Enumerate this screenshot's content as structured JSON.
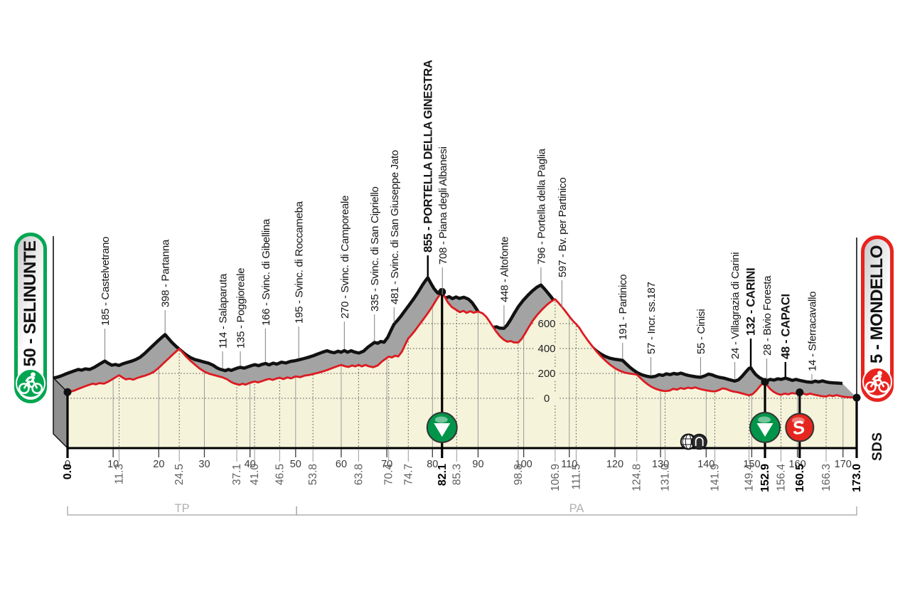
{
  "stage": {
    "start_label": "50 - SELINUNTE",
    "finish_label": "5 - MONDELLO",
    "start_color": "#00a651",
    "finish_color": "#e8231f",
    "watermark": "SDS"
  },
  "axis": {
    "x_ticks": [
      0,
      10,
      20,
      30,
      40,
      50,
      60,
      70,
      80,
      90,
      100,
      110,
      120,
      130,
      140,
      150,
      160,
      170
    ],
    "y_ticks": [
      0,
      200,
      400,
      600
    ],
    "km_total": 173,
    "provinces": [
      {
        "label": "TP",
        "from_km": 0,
        "to_km": 50.2
      },
      {
        "label": "PA",
        "from_km": 50.2,
        "to_km": 173
      }
    ]
  },
  "colors": {
    "route_line": "#dd1a21",
    "terrain_fill": "#f5f3da",
    "relief_fill": "#a3a3a3",
    "relief_wall": "#8f8f8f",
    "relief_edge": "#111111",
    "feed_zone_green": "#019549",
    "sprint_red": "#e5261f",
    "grid_solid": "#9b9b9b",
    "grid_dotted": "#4a4a4a",
    "label_dark": "#141414",
    "label_gray": "#606060",
    "bracket_gray": "#b0b0b0"
  },
  "chart_data": {
    "type": "area",
    "x_unit": "km",
    "y_unit": "m",
    "ylim": [
      0,
      900
    ],
    "xlim": [
      0,
      173
    ],
    "waypoints": [
      {
        "km": 0.0,
        "elevation": 50,
        "label": "",
        "distance_label": "0.0",
        "bold": true,
        "label_y": 0
      },
      {
        "km": 11.3,
        "elevation": 185,
        "label": "185 - Castelvetrano",
        "distance_label": "11.3",
        "bold": false,
        "label_y": 458
      },
      {
        "km": 24.5,
        "elevation": 398,
        "label": "398 - Partanna",
        "distance_label": "24.5",
        "bold": false,
        "label_y": 432
      },
      {
        "km": 37.1,
        "elevation": 114,
        "label": "114 - Salaparuta",
        "distance_label": "37.1",
        "bold": false,
        "label_y": 490
      },
      {
        "km": 41.0,
        "elevation": 135,
        "label": "135 - Poggioreale",
        "distance_label": "41.0",
        "bold": false,
        "label_y": 490
      },
      {
        "km": 46.5,
        "elevation": 166,
        "label": "166 - Svinc. di Gibellina",
        "distance_label": "46.5",
        "bold": false,
        "label_y": 458
      },
      {
        "km": 53.8,
        "elevation": 195,
        "label": "195 - Svinc. di Roccameba",
        "distance_label": "53.8",
        "bold": false,
        "label_y": 455
      },
      {
        "km": 63.8,
        "elevation": 270,
        "label": "270 - Svinc. di Camporeale",
        "distance_label": "63.8",
        "bold": false,
        "label_y": 448
      },
      {
        "km": 70.4,
        "elevation": 335,
        "label": "335 - Svinc. di San Cipriello",
        "distance_label": "70.4",
        "bold": false,
        "label_y": 438
      },
      {
        "km": 74.7,
        "elevation": 481,
        "label": "481 - Svinc. di San Giuseppe Jato",
        "distance_label": "74.7",
        "bold": false,
        "label_y": 428
      },
      {
        "km": 82.1,
        "elevation": 855,
        "label": "855 - PORTELLA DELLA GINESTRA",
        "distance_label": "82.1",
        "bold": true,
        "label_y": 355
      },
      {
        "km": 85.3,
        "elevation": 708,
        "label": "708 - Piana degli Albanesi",
        "distance_label": "85.3",
        "bold": false,
        "label_y": 372
      },
      {
        "km": 98.8,
        "elevation": 448,
        "label": "448 - Altofonte",
        "distance_label": "98.8",
        "bold": false,
        "label_y": 425
      },
      {
        "km": 106.9,
        "elevation": 796,
        "label": "796 - Portella della Paglia",
        "distance_label": "106.9",
        "bold": false,
        "label_y": 372
      },
      {
        "km": 111.5,
        "elevation": 597,
        "label": "597 - Bv. per Partinico",
        "distance_label": "111.5",
        "bold": false,
        "label_y": 390
      },
      {
        "km": 124.8,
        "elevation": 191,
        "label": "191 - Partinico",
        "distance_label": "124.8",
        "bold": false,
        "label_y": 478
      },
      {
        "km": 131.0,
        "elevation": 57,
        "label": "57 - Incr. ss.187",
        "distance_label": "131.0",
        "bold": false,
        "label_y": 498
      },
      {
        "km": 141.9,
        "elevation": 55,
        "label": "55 - Cinisi",
        "distance_label": "141.9",
        "bold": false,
        "label_y": 498
      },
      {
        "km": 149.4,
        "elevation": 24,
        "label": "24 - Villagrazia di Carini",
        "distance_label": "149.4",
        "bold": false,
        "label_y": 505
      },
      {
        "km": 152.9,
        "elevation": 132,
        "label": "132 - CARINI",
        "distance_label": "152.9",
        "bold": true,
        "label_y": 472
      },
      {
        "km": 156.4,
        "elevation": 28,
        "label": "28 - Bivio Foresta",
        "distance_label": "156.4",
        "bold": false,
        "label_y": 500
      },
      {
        "km": 160.5,
        "elevation": 48,
        "label": "48 - CAPACI",
        "distance_label": "160.5",
        "bold": true,
        "label_y": 505
      },
      {
        "km": 166.3,
        "elevation": 14,
        "label": "14 - Sferracavallo",
        "distance_label": "166.3",
        "bold": false,
        "label_y": 522
      },
      {
        "km": 173.0,
        "elevation": 5,
        "label": "",
        "distance_label": "173.0",
        "bold": true,
        "label_y": 0
      }
    ],
    "icons": [
      {
        "km": 82.1,
        "type": "feed-zone"
      },
      {
        "km": 136.1,
        "type": "tunnel-crosshatch"
      },
      {
        "km": 138.5,
        "type": "tunnel"
      },
      {
        "km": 152.9,
        "type": "feed-zone"
      },
      {
        "km": 160.5,
        "type": "sprint"
      }
    ],
    "profile": [
      [
        0,
        50
      ],
      [
        0.5,
        52
      ],
      [
        1.5,
        62
      ],
      [
        2.5,
        78
      ],
      [
        3.5,
        92
      ],
      [
        4.5,
        105
      ],
      [
        5.5,
        118
      ],
      [
        6.2,
        112
      ],
      [
        7,
        122
      ],
      [
        8,
        118
      ],
      [
        9,
        135
      ],
      [
        10,
        158
      ],
      [
        11.3,
        185
      ],
      [
        12,
        168
      ],
      [
        12.8,
        152
      ],
      [
        13.6,
        158
      ],
      [
        14.4,
        150
      ],
      [
        15.2,
        162
      ],
      [
        16,
        172
      ],
      [
        17,
        182
      ],
      [
        18,
        196
      ],
      [
        19,
        215
      ],
      [
        20,
        245
      ],
      [
        21,
        280
      ],
      [
        22,
        315
      ],
      [
        23,
        350
      ],
      [
        24,
        382
      ],
      [
        24.5,
        398
      ],
      [
        25.2,
        368
      ],
      [
        26,
        335
      ],
      [
        27,
        300
      ],
      [
        28,
        268
      ],
      [
        29,
        238
      ],
      [
        30,
        214
      ],
      [
        31,
        198
      ],
      [
        32,
        188
      ],
      [
        33,
        178
      ],
      [
        34,
        168
      ],
      [
        35,
        152
      ],
      [
        35.8,
        132
      ],
      [
        36.5,
        120
      ],
      [
        37.1,
        114
      ],
      [
        37.7,
        108
      ],
      [
        38.4,
        118
      ],
      [
        39,
        110
      ],
      [
        39.7,
        120
      ],
      [
        40.3,
        128
      ],
      [
        41,
        135
      ],
      [
        41.8,
        128
      ],
      [
        42.6,
        138
      ],
      [
        43.4,
        148
      ],
      [
        44.2,
        156
      ],
      [
        45,
        148
      ],
      [
        45.7,
        158
      ],
      [
        46.5,
        166
      ],
      [
        47.3,
        154
      ],
      [
        48.2,
        168
      ],
      [
        49,
        160
      ],
      [
        50,
        176
      ],
      [
        51,
        170
      ],
      [
        52,
        182
      ],
      [
        53,
        188
      ],
      [
        53.8,
        195
      ],
      [
        55,
        206
      ],
      [
        56,
        216
      ],
      [
        57,
        228
      ],
      [
        58,
        242
      ],
      [
        59,
        256
      ],
      [
        60,
        268
      ],
      [
        60.8,
        258
      ],
      [
        61.6,
        252
      ],
      [
        62.4,
        264
      ],
      [
        63.1,
        256
      ],
      [
        63.8,
        270
      ],
      [
        64.5,
        256
      ],
      [
        65.3,
        268
      ],
      [
        66,
        258
      ],
      [
        67,
        250
      ],
      [
        68,
        264
      ],
      [
        69,
        298
      ],
      [
        70.4,
        335
      ],
      [
        71.1,
        328
      ],
      [
        71.8,
        342
      ],
      [
        72.5,
        336
      ],
      [
        73.3,
        375
      ],
      [
        74,
        430
      ],
      [
        74.7,
        481
      ],
      [
        75.4,
        510
      ],
      [
        76.2,
        545
      ],
      [
        77,
        585
      ],
      [
        78,
        635
      ],
      [
        79,
        685
      ],
      [
        80,
        740
      ],
      [
        81,
        800
      ],
      [
        81.6,
        832
      ],
      [
        82.1,
        855
      ],
      [
        82.7,
        815
      ],
      [
        83.4,
        770
      ],
      [
        84.2,
        735
      ],
      [
        85.3,
        708
      ],
      [
        86,
        692
      ],
      [
        86.8,
        702
      ],
      [
        87.5,
        686
      ],
      [
        88.3,
        700
      ],
      [
        89,
        688
      ],
      [
        90,
        698
      ],
      [
        91,
        682
      ],
      [
        91.8,
        655
      ],
      [
        92.5,
        618
      ],
      [
        93.2,
        578
      ],
      [
        94,
        535
      ],
      [
        94.8,
        498
      ],
      [
        95.6,
        472
      ],
      [
        96.4,
        455
      ],
      [
        97.2,
        460
      ],
      [
        97.8,
        450
      ],
      [
        98.8,
        448
      ],
      [
        99.5,
        475
      ],
      [
        100.3,
        520
      ],
      [
        101,
        565
      ],
      [
        102,
        625
      ],
      [
        103,
        672
      ],
      [
        104,
        712
      ],
      [
        105,
        748
      ],
      [
        106,
        778
      ],
      [
        106.9,
        796
      ],
      [
        107.6,
        768
      ],
      [
        108.3,
        738
      ],
      [
        109,
        706
      ],
      [
        109.7,
        672
      ],
      [
        110.4,
        640
      ],
      [
        111,
        614
      ],
      [
        111.5,
        597
      ],
      [
        112.2,
        566
      ],
      [
        113,
        520
      ],
      [
        114,
        468
      ],
      [
        115,
        420
      ],
      [
        116,
        375
      ],
      [
        117,
        335
      ],
      [
        118,
        300
      ],
      [
        119,
        268
      ],
      [
        120,
        242
      ],
      [
        121,
        222
      ],
      [
        122,
        208
      ],
      [
        123,
        200
      ],
      [
        124,
        195
      ],
      [
        124.8,
        191
      ],
      [
        125.6,
        162
      ],
      [
        126.4,
        135
      ],
      [
        127.2,
        112
      ],
      [
        128,
        92
      ],
      [
        129,
        75
      ],
      [
        130,
        64
      ],
      [
        131,
        57
      ],
      [
        132,
        62
      ],
      [
        132.8,
        76
      ],
      [
        133.6,
        70
      ],
      [
        134.4,
        82
      ],
      [
        135.2,
        76
      ],
      [
        136,
        86
      ],
      [
        136.8,
        80
      ],
      [
        137.6,
        88
      ],
      [
        138.4,
        78
      ],
      [
        139.2,
        70
      ],
      [
        140,
        64
      ],
      [
        141,
        58
      ],
      [
        141.9,
        55
      ],
      [
        142.8,
        66
      ],
      [
        143.6,
        80
      ],
      [
        144.4,
        74
      ],
      [
        145.2,
        62
      ],
      [
        146,
        54
      ],
      [
        147,
        48
      ],
      [
        148,
        38
      ],
      [
        149.4,
        24
      ],
      [
        150.2,
        34
      ],
      [
        151,
        62
      ],
      [
        151.8,
        98
      ],
      [
        152.5,
        126
      ],
      [
        152.9,
        132
      ],
      [
        153.4,
        104
      ],
      [
        154,
        76
      ],
      [
        154.8,
        52
      ],
      [
        155.6,
        36
      ],
      [
        156.4,
        28
      ],
      [
        157.2,
        38
      ],
      [
        158,
        32
      ],
      [
        158.8,
        42
      ],
      [
        159.6,
        38
      ],
      [
        160.5,
        48
      ],
      [
        161.2,
        40
      ],
      [
        162,
        30
      ],
      [
        162.8,
        38
      ],
      [
        163.6,
        30
      ],
      [
        164.4,
        24
      ],
      [
        165.2,
        18
      ],
      [
        166.3,
        14
      ],
      [
        167,
        24
      ],
      [
        167.8,
        18
      ],
      [
        168.6,
        26
      ],
      [
        169.4,
        18
      ],
      [
        170.2,
        12
      ],
      [
        171,
        10
      ],
      [
        172,
        8
      ],
      [
        173,
        5
      ]
    ]
  }
}
